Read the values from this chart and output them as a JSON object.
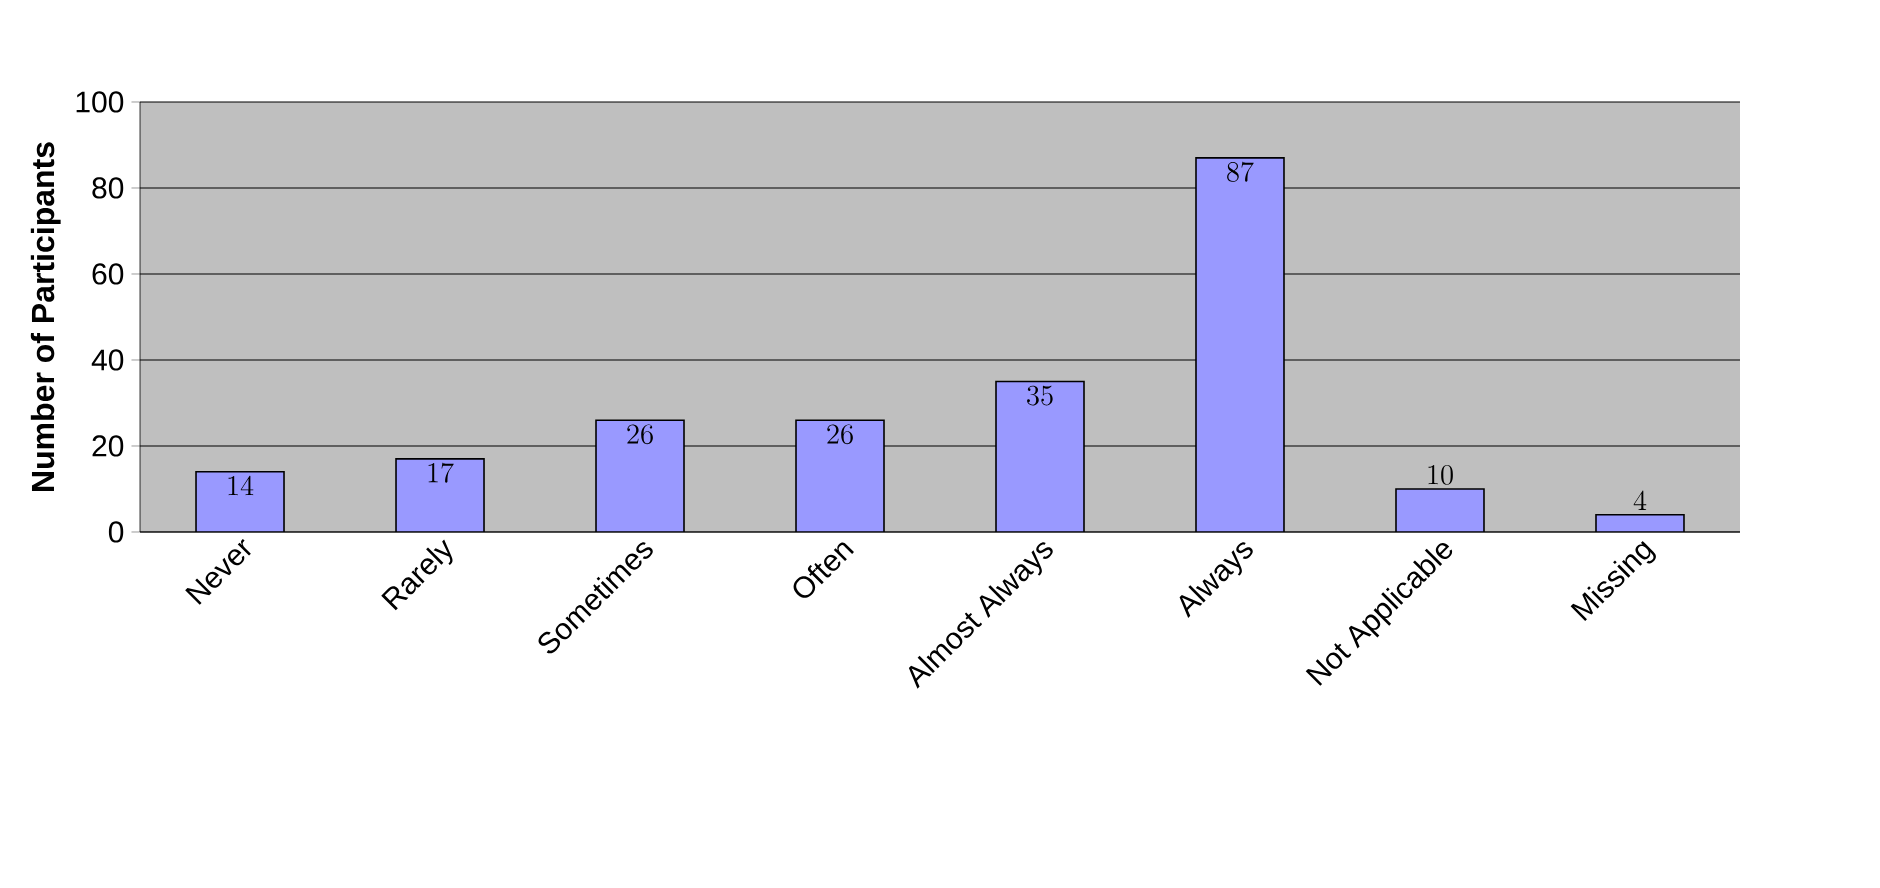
{
  "chart_data": {
    "type": "bar",
    "ylabel": "Number of Participants",
    "categories": [
      "Never",
      "Rarely",
      "Sometimes",
      "Often",
      "Almost Always",
      "Always",
      "Not Applicable",
      "Missing"
    ],
    "values": [
      14,
      17,
      26,
      26,
      35,
      87,
      10,
      4
    ],
    "color": "#9999ff",
    "ylim": [
      0,
      100
    ],
    "yticks": [
      0,
      20,
      40,
      60,
      80,
      100
    ],
    "grid": "y",
    "data_labels": true
  }
}
